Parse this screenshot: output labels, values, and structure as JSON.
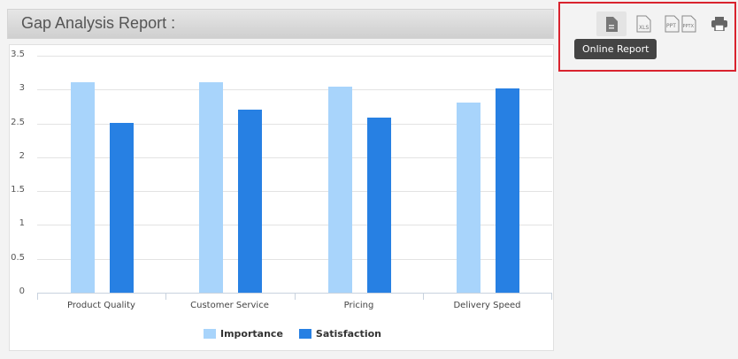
{
  "header": {
    "title": "Gap Analysis Report :"
  },
  "toolbar": {
    "buttons": [
      {
        "name": "online-report",
        "icon": "document-icon",
        "label": "Online Report"
      },
      {
        "name": "xls",
        "icon": "xls-icon",
        "label": "XLS"
      },
      {
        "name": "ppt",
        "icon": "ppt-icon",
        "label": "PPT"
      },
      {
        "name": "pptx",
        "icon": "pptx-icon",
        "label": "PPTX"
      },
      {
        "name": "print",
        "icon": "print-icon",
        "label": "Print"
      }
    ],
    "tooltip": "Online Report"
  },
  "colors": {
    "importance": "#a8d4fb",
    "satisfaction": "#2780e3",
    "highlight_border": "#d9232e"
  },
  "chart_data": {
    "type": "bar",
    "title": "",
    "xlabel": "",
    "ylabel": "",
    "categories": [
      "Product Quality",
      "Customer Service",
      "Pricing",
      "Delivery Speed"
    ],
    "series": [
      {
        "name": "Importance",
        "values": [
          3.11,
          3.11,
          3.04,
          2.81
        ]
      },
      {
        "name": "Satisfaction",
        "values": [
          2.51,
          2.7,
          2.58,
          3.02
        ]
      }
    ],
    "ylim": [
      0,
      3.5
    ],
    "yticks": [
      "0",
      "0.5",
      "1",
      "1.5",
      "2",
      "2.5",
      "3",
      "3.5"
    ],
    "grid": true,
    "legend_position": "bottom"
  }
}
